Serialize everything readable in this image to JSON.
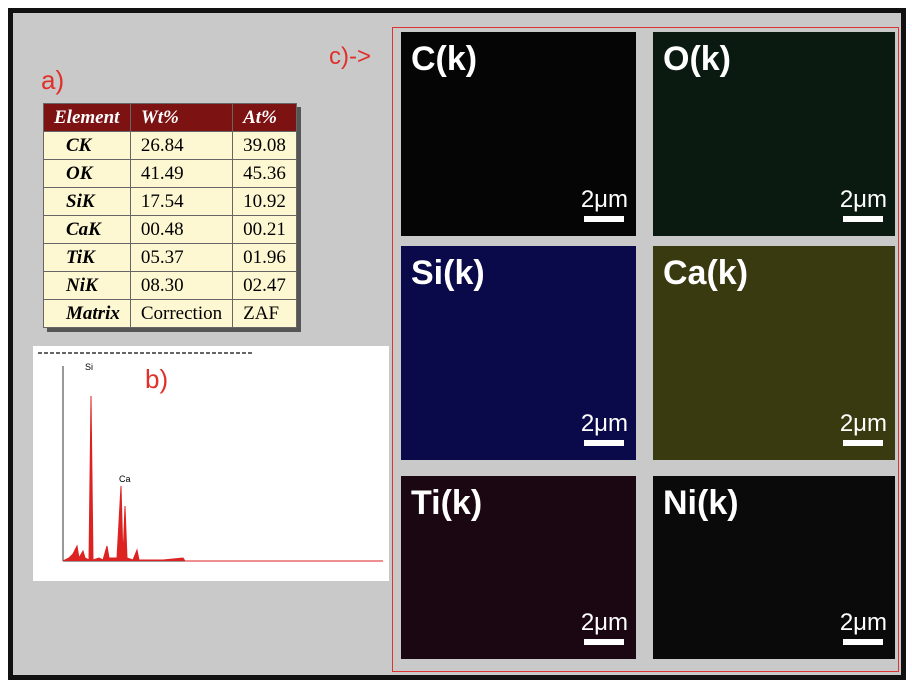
{
  "panel_labels": {
    "a": "a)",
    "b": "b)",
    "c": "c)->"
  },
  "table": {
    "header": [
      "Element",
      "Wt%",
      "At%"
    ],
    "rows": [
      [
        "CK",
        "26.84",
        "39.08"
      ],
      [
        "OK",
        "41.49",
        "45.36"
      ],
      [
        "SiK",
        "17.54",
        "10.92"
      ],
      [
        "CaK",
        "00.48",
        "00.21"
      ],
      [
        "TiK",
        "05.37",
        "01.96"
      ],
      [
        "NiK",
        "08.30",
        "02.47"
      ],
      [
        "Matrix",
        "Correction",
        "ZAF"
      ]
    ]
  },
  "spectrum": {
    "peak_labels": [
      "Si",
      "Ca"
    ]
  },
  "maps": [
    {
      "label": "C(k)",
      "scale": "2μm"
    },
    {
      "label": "O(k)",
      "scale": "2μm"
    },
    {
      "label": "Si(k)",
      "scale": "2μm"
    },
    {
      "label": "Ca(k)",
      "scale": "2μm"
    },
    {
      "label": "Ti(k)",
      "scale": "2μm"
    },
    {
      "label": "Ni(k)",
      "scale": "2μm"
    }
  ]
}
